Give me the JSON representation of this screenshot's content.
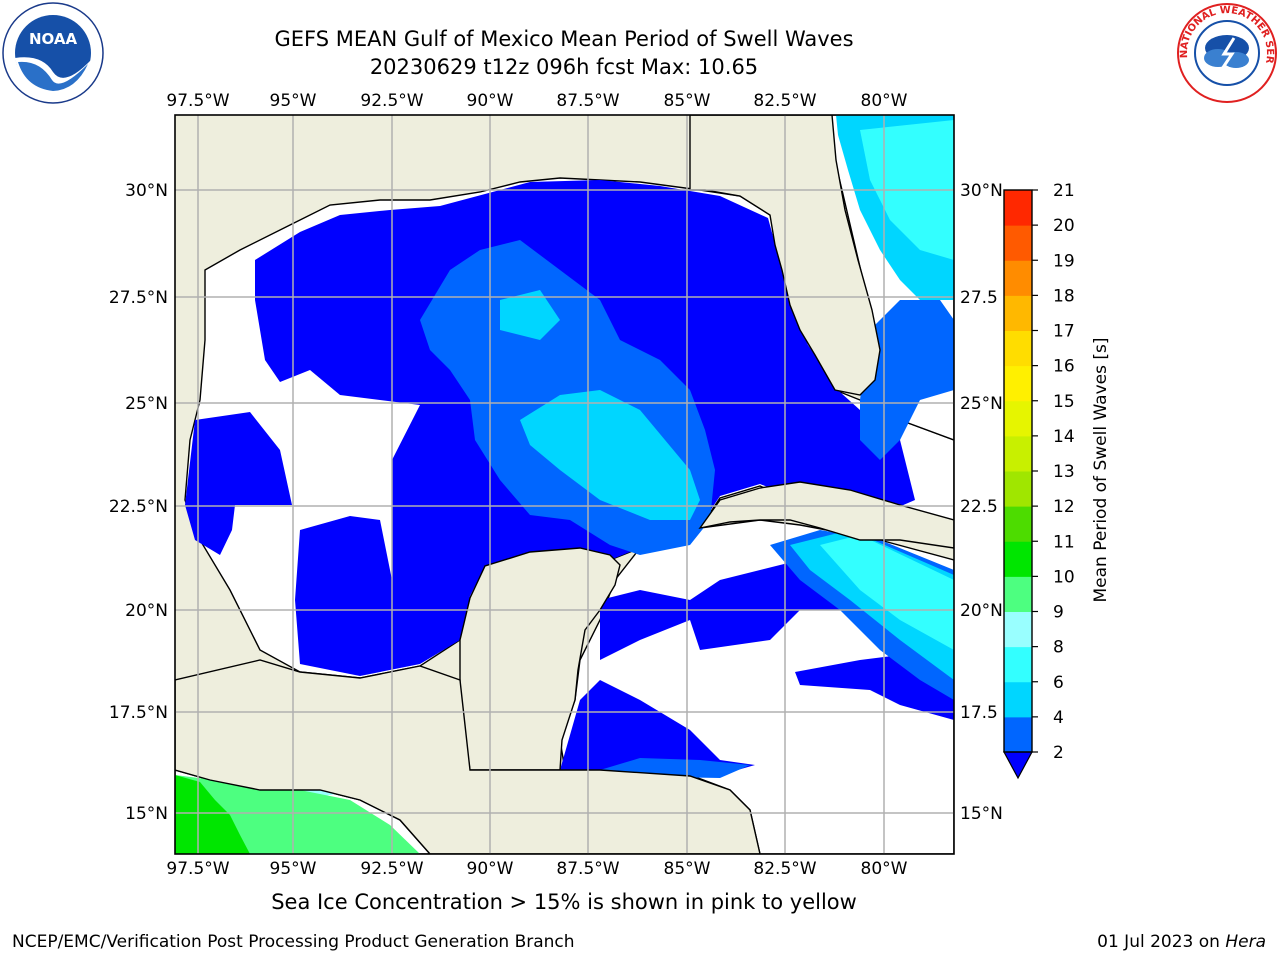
{
  "title_line1": "GEFS MEAN Gulf of Mexico Mean Period of Swell Waves",
  "title_line2": "20230629 t12z 096h fcst   Max: 10.65",
  "lon_labels": [
    "97.5°W",
    "95°W",
    "92.5°W",
    "90°W",
    "87.5°W",
    "85°W",
    "82.5°W",
    "80°W"
  ],
  "lat_labels_left": [
    "30°N",
    "27.5°N",
    "25°N",
    "22.5°N",
    "20°N",
    "17.5°N",
    "15°N"
  ],
  "lat_labels_right": [
    "30°N",
    "27.5",
    "25°N",
    "22.5",
    "20°N",
    "17.5",
    "15°N"
  ],
  "colorbar": {
    "label": "Mean Period of Swell Waves [s]",
    "ticks": [
      "2",
      "4",
      "6",
      "8",
      "9",
      "10",
      "11",
      "12",
      "13",
      "14",
      "15",
      "16",
      "17",
      "18",
      "19",
      "20",
      "21"
    ],
    "colors": [
      "#0066ff",
      "#00d6ff",
      "#33ffff",
      "#99ffff",
      "#4dff80",
      "#00e600",
      "#4ddc00",
      "#a0e600",
      "#c8f000",
      "#e6f500",
      "#fff000",
      "#ffdd00",
      "#ffb800",
      "#ff8c00",
      "#ff5a00",
      "#ff2800",
      "#ff0000"
    ],
    "under_color": "#0000ff"
  },
  "footer_note": "Sea Ice Concentration > 15% is shown in pink to yellow",
  "footer_left": "NCEP/EMC/Verification Post Processing Product Generation Branch",
  "footer_right_date": "01 Jul 2023 on ",
  "footer_right_host": "Hera",
  "logo_left": "NOAA",
  "logo_right": "NATIONAL WEATHER SERVICE",
  "map_colors": {
    "land": "#eeeedd",
    "ocean_blank": "#ffffff",
    "swell_under2": "#0000ff",
    "swell_2_4": "#0066ff",
    "swell_4_6": "#00d6ff",
    "swell_6_8": "#33ffff",
    "swell_8_9": "#99ffff",
    "swell_9_10": "#4dff80",
    "swell_10_11": "#00e600",
    "grid": "#b0b0b0"
  }
}
